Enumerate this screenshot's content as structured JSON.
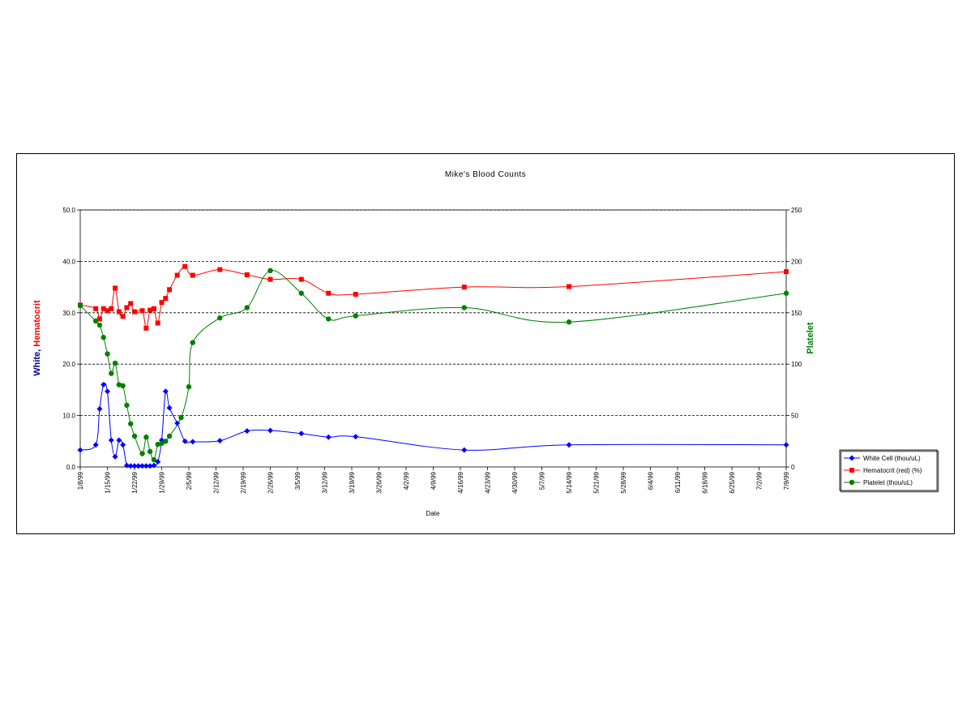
{
  "chart_data": {
    "type": "line",
    "title": "Mike's Blood Counts",
    "xlabel": "Date",
    "ylabel_left": [
      "White",
      ", ",
      "Hematocrit"
    ],
    "ylabel_right": "Platelet",
    "y_left_lim": [
      0,
      50
    ],
    "y_right_lim": [
      0,
      250
    ],
    "y_left_ticks": [
      "0.0",
      "10.0",
      "20.0",
      "30.0",
      "40.0",
      "50.0"
    ],
    "y_right_ticks": [
      "0",
      "50",
      "100",
      "150",
      "200",
      "250"
    ],
    "grid": "horizontal dashed",
    "legend_position": "right",
    "x_tick_labels": [
      "1/8/99",
      "1/15/99",
      "1/22/99",
      "1/29/99",
      "2/5/99",
      "2/12/99",
      "2/19/99",
      "2/26/99",
      "3/5/99",
      "3/12/99",
      "3/19/99",
      "3/26/99",
      "4/2/99",
      "4/9/99",
      "4/16/99",
      "4/23/99",
      "4/30/99",
      "5/7/99",
      "5/14/99",
      "5/21/99",
      "5/28/99",
      "6/4/99",
      "6/11/99",
      "6/18/99",
      "6/25/99",
      "7/2/99",
      "7/9/99"
    ],
    "x_range": [
      "1999-01-08",
      "1999-07-09"
    ],
    "colors": {
      "white": "#0000ff",
      "hematocrit": "#ff0000",
      "platelet": "#008000",
      "ylabel_white": "#000080"
    },
    "series": [
      {
        "name": "White Cell (thou/uL)",
        "axis": "left",
        "marker": "diamond",
        "points": [
          [
            "1999-01-08",
            3.3
          ],
          [
            "1999-01-12",
            4.3
          ],
          [
            "1999-01-13",
            11.3
          ],
          [
            "1999-01-14",
            16.0
          ],
          [
            "1999-01-15",
            14.7
          ],
          [
            "1999-01-16",
            5.2
          ],
          [
            "1999-01-17",
            2.0
          ],
          [
            "1999-01-18",
            5.2
          ],
          [
            "1999-01-19",
            4.3
          ],
          [
            "1999-01-20",
            0.3
          ],
          [
            "1999-01-21",
            0.2
          ],
          [
            "1999-01-22",
            0.2
          ],
          [
            "1999-01-23",
            0.2
          ],
          [
            "1999-01-24",
            0.2
          ],
          [
            "1999-01-25",
            0.2
          ],
          [
            "1999-01-26",
            0.2
          ],
          [
            "1999-01-27",
            0.3
          ],
          [
            "1999-01-28",
            1.0
          ],
          [
            "1999-01-29",
            5.2
          ],
          [
            "1999-01-30",
            14.7
          ],
          [
            "1999-01-31",
            11.5
          ],
          [
            "1999-02-02",
            8.5
          ],
          [
            "1999-02-04",
            5.0
          ],
          [
            "1999-02-06",
            4.9
          ],
          [
            "1999-02-13",
            5.1
          ],
          [
            "1999-02-20",
            7.0
          ],
          [
            "1999-02-26",
            7.1
          ],
          [
            "1999-03-06",
            6.5
          ],
          [
            "1999-03-13",
            5.8
          ],
          [
            "1999-03-20",
            5.9
          ],
          [
            "1999-04-17",
            3.3
          ],
          [
            "1999-05-14",
            4.3
          ],
          [
            "1999-07-09",
            4.3
          ]
        ]
      },
      {
        "name": "Hematocrit (red) (%)",
        "axis": "left",
        "marker": "square",
        "points": [
          [
            "1999-01-08",
            31.5
          ],
          [
            "1999-01-12",
            30.8
          ],
          [
            "1999-01-13",
            28.8
          ],
          [
            "1999-01-14",
            30.8
          ],
          [
            "1999-01-15",
            30.4
          ],
          [
            "1999-01-16",
            30.8
          ],
          [
            "1999-01-17",
            34.8
          ],
          [
            "1999-01-18",
            30.2
          ],
          [
            "1999-01-19",
            29.3
          ],
          [
            "1999-01-20",
            31.0
          ],
          [
            "1999-01-21",
            31.8
          ],
          [
            "1999-01-22",
            30.2
          ],
          [
            "1999-01-24",
            30.4
          ],
          [
            "1999-01-25",
            27.0
          ],
          [
            "1999-01-26",
            30.5
          ],
          [
            "1999-01-27",
            30.8
          ],
          [
            "1999-01-28",
            28.0
          ],
          [
            "1999-01-29",
            32.0
          ],
          [
            "1999-01-30",
            32.8
          ],
          [
            "1999-01-31",
            34.5
          ],
          [
            "1999-02-02",
            37.3
          ],
          [
            "1999-02-04",
            39.0
          ],
          [
            "1999-02-06",
            37.3
          ],
          [
            "1999-02-13",
            38.4
          ],
          [
            "1999-02-20",
            37.4
          ],
          [
            "1999-02-26",
            36.5
          ],
          [
            "1999-03-06",
            36.5
          ],
          [
            "1999-03-13",
            33.8
          ],
          [
            "1999-03-20",
            33.6
          ],
          [
            "1999-04-17",
            35.0
          ],
          [
            "1999-05-14",
            35.1
          ],
          [
            "1999-07-09",
            38.0
          ]
        ]
      },
      {
        "name": "Platelet (thou/uL)",
        "axis": "right",
        "marker": "circle",
        "points": [
          [
            "1999-01-08",
            157
          ],
          [
            "1999-01-12",
            142
          ],
          [
            "1999-01-13",
            138
          ],
          [
            "1999-01-14",
            126
          ],
          [
            "1999-01-15",
            110
          ],
          [
            "1999-01-16",
            91
          ],
          [
            "1999-01-17",
            101
          ],
          [
            "1999-01-18",
            80
          ],
          [
            "1999-01-19",
            79
          ],
          [
            "1999-01-20",
            60
          ],
          [
            "1999-01-21",
            42
          ],
          [
            "1999-01-22",
            30
          ],
          [
            "1999-01-24",
            13
          ],
          [
            "1999-01-25",
            29
          ],
          [
            "1999-01-26",
            15
          ],
          [
            "1999-01-27",
            7
          ],
          [
            "1999-01-28",
            22
          ],
          [
            "1999-01-29",
            23
          ],
          [
            "1999-01-30",
            25
          ],
          [
            "1999-01-31",
            30
          ],
          [
            "1999-02-03",
            48
          ],
          [
            "1999-02-05",
            78
          ],
          [
            "1999-02-06",
            121
          ],
          [
            "1999-02-13",
            145
          ],
          [
            "1999-02-20",
            155
          ],
          [
            "1999-02-26",
            191
          ],
          [
            "1999-03-06",
            169
          ],
          [
            "1999-03-13",
            144
          ],
          [
            "1999-03-20",
            147
          ],
          [
            "1999-04-17",
            155
          ],
          [
            "1999-05-14",
            141
          ],
          [
            "1999-07-09",
            169
          ]
        ]
      }
    ]
  }
}
